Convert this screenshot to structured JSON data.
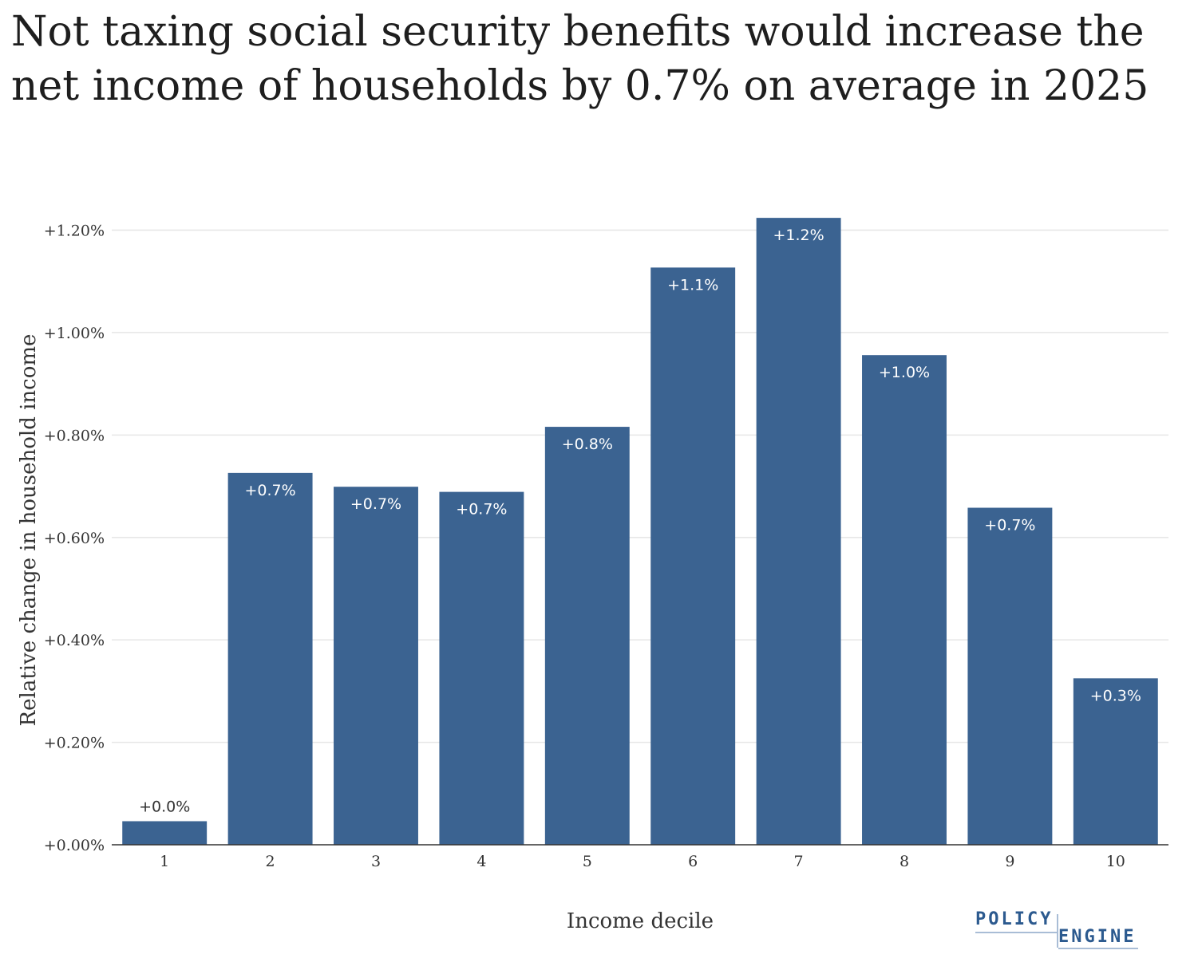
{
  "title": "Not taxing social security benefits would increase the net income of households by 0.7% on average in 2025",
  "logo": {
    "line1": "POLICY",
    "line2": "ENGINE",
    "color": "#2c5a8f"
  },
  "chart_data": {
    "type": "bar",
    "xlabel": "Income decile",
    "ylabel": "Relative change in household income",
    "categories": [
      "1",
      "2",
      "3",
      "4",
      "5",
      "6",
      "7",
      "8",
      "9",
      "10"
    ],
    "values": [
      0.046,
      0.726,
      0.699,
      0.689,
      0.816,
      1.127,
      1.224,
      0.956,
      0.658,
      0.325
    ],
    "data_labels": [
      "+0.0%",
      "+0.7%",
      "+0.7%",
      "+0.7%",
      "+0.8%",
      "+1.1%",
      "+1.2%",
      "+1.0%",
      "+0.7%",
      "+0.3%"
    ],
    "yticks": [
      0,
      0.2,
      0.4,
      0.6,
      0.8,
      1.0,
      1.2
    ],
    "ytick_labels": [
      "+0.00%",
      "+0.20%",
      "+0.40%",
      "+0.60%",
      "+0.80%",
      "+1.00%",
      "+1.20%"
    ],
    "ylim": [
      0,
      1.26
    ],
    "grid": true,
    "bar_color": "#3b6391"
  }
}
